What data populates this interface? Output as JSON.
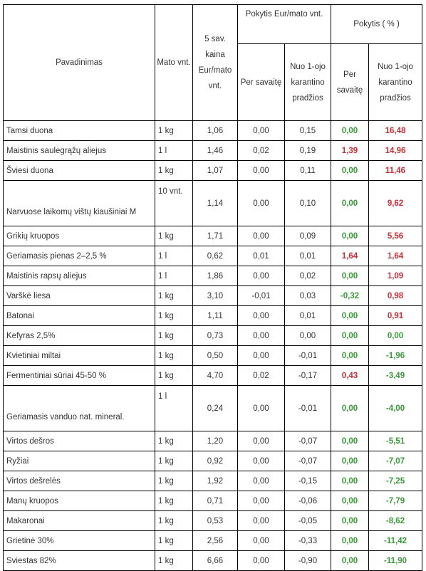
{
  "header": {
    "name": "Pavadinimas",
    "unit": "Mato vnt.",
    "price": "5 sav. kaina Eur/mato vnt.",
    "change_eur": "Pokytis Eur/mato vnt.",
    "change_pct": "Pokytis ( % )",
    "per_week": "Per savaitę",
    "since_quarantine": "Nuo 1-ojo karantino pradžios",
    "since_quarantine_pct": "Nuo 1-ojo karantino pradžios"
  },
  "colors": {
    "increase": "#c82e36",
    "decrease": "#3a9a3a"
  },
  "rows": [
    {
      "name": "Tamsi duona",
      "unit": "1 kg",
      "price": "1,06",
      "week_eur": "0,00",
      "since_eur": "0,15",
      "week_pct": "0,00",
      "since_pct": "16,48"
    },
    {
      "name": "Maistinis saulėgrąžų aliejus",
      "unit": "1 l",
      "price": "1,46",
      "week_eur": "0,02",
      "since_eur": "0,19",
      "week_pct": "1,39",
      "since_pct": "14,96"
    },
    {
      "name": "Šviesi duona",
      "unit": "1 kg",
      "price": "1,07",
      "week_eur": "0,00",
      "since_eur": "0,11",
      "week_pct": "0,00",
      "since_pct": "11,46"
    },
    {
      "name": "Narvuose laikomų vištų kiaušiniai M",
      "unit": "10 vnt.",
      "price": "1,14",
      "week_eur": "0,00",
      "since_eur": "0,10",
      "week_pct": "0,00",
      "since_pct": "9,62"
    },
    {
      "name": "Grikių kruopos",
      "unit": "1 kg",
      "price": "1,71",
      "week_eur": "0,00",
      "since_eur": "0,09",
      "week_pct": "0,00",
      "since_pct": "5,56"
    },
    {
      "name": "Geriamasis pienas 2–2,5 %",
      "unit": "1 l",
      "price": "0,62",
      "week_eur": "0,01",
      "since_eur": "0,01",
      "week_pct": "1,64",
      "since_pct": "1,64"
    },
    {
      "name": "Maistinis rapsų aliejus",
      "unit": "1 l",
      "price": "1,86",
      "week_eur": "0,00",
      "since_eur": "0,02",
      "week_pct": "0,00",
      "since_pct": "1,09"
    },
    {
      "name": "Varškė liesa",
      "unit": "1 kg",
      "price": "3,10",
      "week_eur": "-0,01",
      "since_eur": "0,03",
      "week_pct": "-0,32",
      "since_pct": "0,98"
    },
    {
      "name": "Batonai",
      "unit": "1 kg",
      "price": "1,11",
      "week_eur": "0,00",
      "since_eur": "0,01",
      "week_pct": "0,00",
      "since_pct": "0,91"
    },
    {
      "name": "Kefyras 2,5%",
      "unit": "1 kg",
      "price": "0,73",
      "week_eur": "0,00",
      "since_eur": "0,00",
      "week_pct": "0,00",
      "since_pct": "0,00"
    },
    {
      "name": "Kvietiniai miltai",
      "unit": "1 kg",
      "price": "0,50",
      "week_eur": "0,00",
      "since_eur": "-0,01",
      "week_pct": "0,00",
      "since_pct": "-1,96"
    },
    {
      "name": "Fermentiniai sūriai 45-50 %",
      "unit": "1 kg",
      "price": "4,70",
      "week_eur": "0,02",
      "since_eur": "-0,17",
      "week_pct": "0,43",
      "since_pct": "-3,49"
    },
    {
      "name": "Geriamasis vanduo nat. mineral.",
      "unit": "1 l",
      "price": "0,24",
      "week_eur": "0,00",
      "since_eur": "-0,01",
      "week_pct": "0,00",
      "since_pct": "-4,00"
    },
    {
      "name": "Virtos dešros",
      "unit": "1 kg",
      "price": "1,20",
      "week_eur": "0,00",
      "since_eur": "-0,07",
      "week_pct": "0,00",
      "since_pct": "-5,51"
    },
    {
      "name": "Ryžiai",
      "unit": "1 kg",
      "price": "0,92",
      "week_eur": "0,00",
      "since_eur": "-0,07",
      "week_pct": "0,00",
      "since_pct": "-7,07"
    },
    {
      "name": "Virtos dešrelės",
      "unit": "1 kg",
      "price": "1,92",
      "week_eur": "0,00",
      "since_eur": "-0,15",
      "week_pct": "0,00",
      "since_pct": "-7,25"
    },
    {
      "name": "Manų kruopos",
      "unit": "1 kg",
      "price": "0,71",
      "week_eur": "0,00",
      "since_eur": "-0,06",
      "week_pct": "0,00",
      "since_pct": "-7,79"
    },
    {
      "name": "Makaronai",
      "unit": "1 kg",
      "price": "0,53",
      "week_eur": "0,00",
      "since_eur": "-0,05",
      "week_pct": "0,00",
      "since_pct": "-8,62"
    },
    {
      "name": "Grietinė 30%",
      "unit": "1 kg",
      "price": "2,56",
      "week_eur": "0,00",
      "since_eur": "-0,33",
      "week_pct": "0,00",
      "since_pct": "-11,42"
    },
    {
      "name": "Sviestas 82%",
      "unit": "1 kg",
      "price": "6,66",
      "week_eur": "0,00",
      "since_eur": "-0,90",
      "week_pct": "0,00",
      "since_pct": "-11,90"
    }
  ]
}
